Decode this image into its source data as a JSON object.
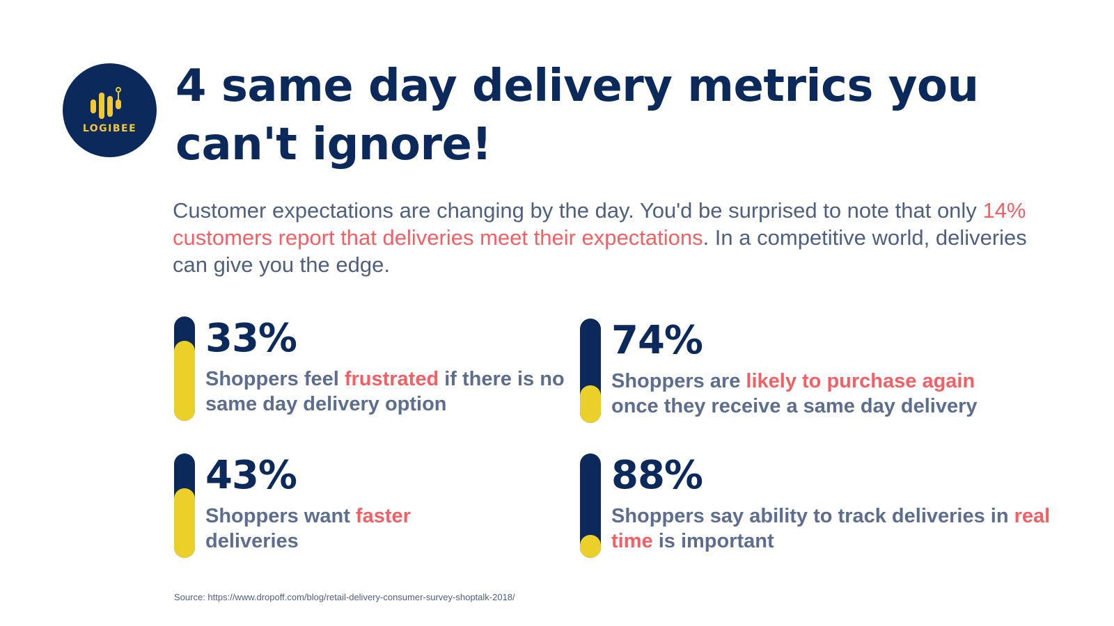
{
  "brand": {
    "name": "LOGIBEE",
    "icon": "bars-logo-icon",
    "colors": {
      "navy": "#0b2a5b",
      "yellow": "#ecd02a",
      "accent": "#f26066",
      "text": "#4f5f80"
    }
  },
  "title": "4 same day delivery metrics you can't ignore!",
  "intro": {
    "before": "Customer expectations are changing by the day. You'd be surprised to note that only ",
    "highlight": "14% customers report that deliveries meet their expectations",
    "after": ". In a competitive world, deliveries can give you the edge."
  },
  "metrics": [
    {
      "percent_label": "33%",
      "fill_fraction": 0.33,
      "desc_before": "Shoppers feel ",
      "desc_highlight": "frustrated",
      "desc_after": " if there is no same day delivery option"
    },
    {
      "percent_label": "74%",
      "fill_fraction": 0.74,
      "desc_before": "Shoppers are ",
      "desc_highlight": "likely to purchase again",
      "desc_after": " once they receive a same day delivery"
    },
    {
      "percent_label": "43%",
      "fill_fraction": 0.43,
      "desc_before": "Shoppers want ",
      "desc_highlight": "faster",
      "desc_after": " deliveries"
    },
    {
      "percent_label": "88%",
      "fill_fraction": 0.88,
      "desc_before": "Shoppers say ability to track deliveries in ",
      "desc_highlight": "real time",
      "desc_after": " is important"
    }
  ],
  "source": "Source: https://www.dropoff.com/blog/retail-delivery-consumer-survey-shoptalk-2018/"
}
